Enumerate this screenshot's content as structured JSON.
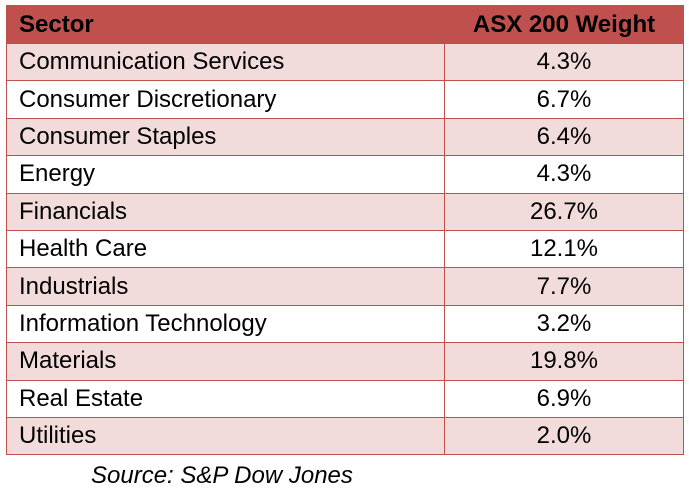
{
  "chart_data": {
    "type": "table",
    "columns": [
      "Sector",
      "ASX 200 Weight"
    ],
    "rows": [
      {
        "sector": "Communication Services",
        "weight": "4.3%",
        "value": 4.3
      },
      {
        "sector": "Consumer Discretionary",
        "weight": "6.7%",
        "value": 6.7
      },
      {
        "sector": "Consumer Staples",
        "weight": "6.4%",
        "value": 6.4
      },
      {
        "sector": "Energy",
        "weight": "4.3%",
        "value": 4.3
      },
      {
        "sector": "Financials",
        "weight": "26.7%",
        "value": 26.7
      },
      {
        "sector": "Health Care",
        "weight": "12.1%",
        "value": 12.1
      },
      {
        "sector": "Industrials",
        "weight": "7.7%",
        "value": 7.7
      },
      {
        "sector": "Information Technology",
        "weight": "3.2%",
        "value": 3.2
      },
      {
        "sector": "Materials",
        "weight": "19.8%",
        "value": 19.8
      },
      {
        "sector": "Real Estate",
        "weight": "6.9%",
        "value": 6.9
      },
      {
        "sector": "Utilities",
        "weight": "2.0%",
        "value": 2.0
      }
    ],
    "source": "Source: S&P Dow Jones"
  },
  "colors": {
    "header_bg": "#c0504d",
    "band_bg": "#f2dcdb",
    "plain_bg": "#ffffff",
    "border": "#c0504d"
  }
}
